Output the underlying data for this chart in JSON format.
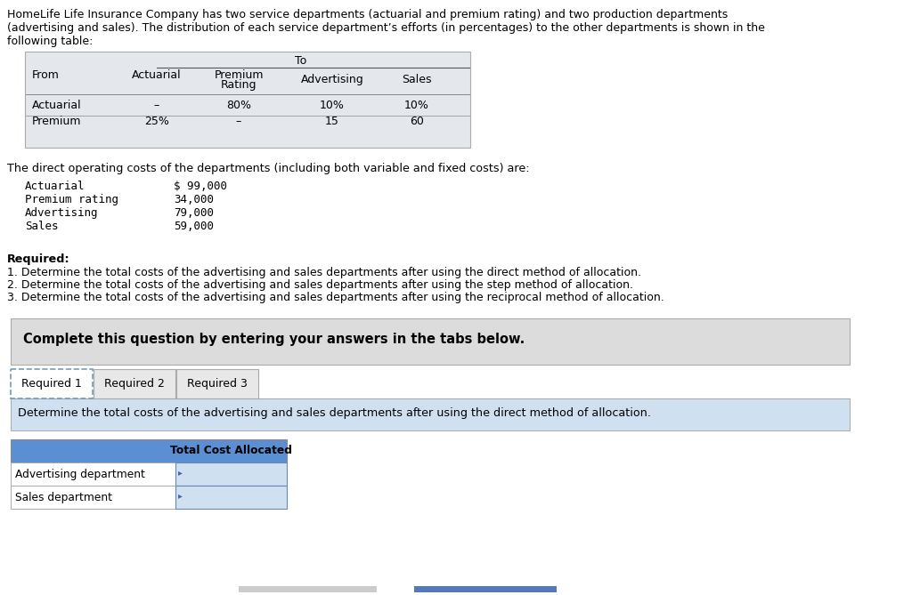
{
  "title_lines": [
    "HomeLife Life Insurance Company has two service departments (actuarial and premium rating) and two production departments",
    "(advertising and sales). The distribution of each service department’s efforts (in percentages) to the other departments is shown in the",
    "following table:"
  ],
  "table1_rows": [
    [
      "Actuarial",
      "–",
      "80%",
      "10%",
      "10%"
    ],
    [
      "Premium",
      "25%",
      "–",
      "15",
      "60"
    ]
  ],
  "costs_label": "The direct operating costs of the departments (including both variable and fixed costs) are:",
  "costs_items": [
    [
      "Actuarial",
      "$ 99,000"
    ],
    [
      "Premium rating",
      "34,000"
    ],
    [
      "Advertising",
      "79,000"
    ],
    [
      "Sales",
      "59,000"
    ]
  ],
  "required_header": "Required:",
  "required_items": [
    "1. Determine the total costs of the advertising and sales departments after using the direct method of allocation.",
    "2. Determine the total costs of the advertising and sales departments after using the step method of allocation.",
    "3. Determine the total costs of the advertising and sales departments after using the reciprocal method of allocation."
  ],
  "complete_box_text": "Complete this question by entering your answers in the tabs below.",
  "tabs": [
    "Required 1",
    "Required 2",
    "Required 3"
  ],
  "active_tab": 0,
  "instruction_text": "Determine the total costs of the advertising and sales departments after using the direct method of allocation.",
  "result_table_header": "Total Cost Allocated",
  "result_table_rows": [
    "Advertising department",
    "Sales department"
  ],
  "bg_color": "#ffffff",
  "table1_bg": "#e4e8ed",
  "complete_box_bg": "#dcdcdc",
  "tab_active_bg": "#ffffff",
  "tab_inactive_bg": "#e8e8e8",
  "instruction_bg": "#cfe0f0",
  "result_header_bg": "#5b8fd4",
  "result_input_bg": "#cfe0f0",
  "mono_font": "DejaVu Sans Mono",
  "sans_font": "DejaVu Sans"
}
